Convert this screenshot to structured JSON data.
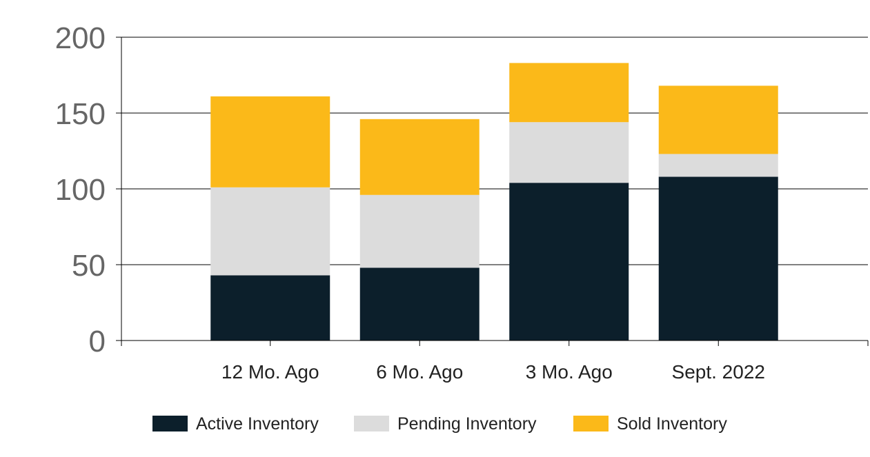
{
  "chart_data": {
    "type": "bar",
    "stacked": true,
    "categories": [
      "12 Mo. Ago",
      "6 Mo. Ago",
      "3 Mo. Ago",
      "Sept. 2022"
    ],
    "series": [
      {
        "name": "Active Inventory",
        "values": [
          43,
          48,
          104,
          108
        ],
        "color": "#0c1f2b"
      },
      {
        "name": "Pending Inventory",
        "values": [
          58,
          48,
          40,
          15
        ],
        "color": "#dcdcdc"
      },
      {
        "name": "Sold Inventory",
        "values": [
          60,
          50,
          39,
          45
        ],
        "color": "#fbb919"
      }
    ],
    "ylim": [
      0,
      200
    ],
    "yticks": [
      0,
      50,
      100,
      150,
      200
    ],
    "grid": true,
    "legend": "bottom-center"
  }
}
